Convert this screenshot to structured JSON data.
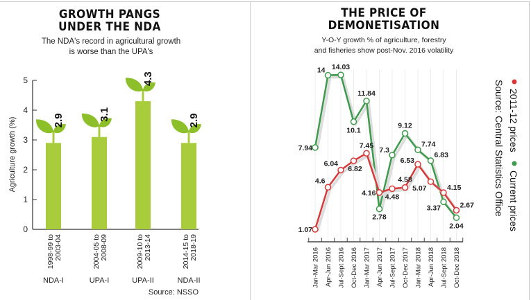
{
  "left": {
    "title_line1": "GROWTH PANGS",
    "title_line2": "UNDER THE NDA",
    "subtitle_line1": "The NDA's record in agricultural growth",
    "subtitle_line2": "is worse than the UPA's",
    "source": "Source: NSSO"
  },
  "right": {
    "title_line1": "THE PRICE OF",
    "title_line2": "DEMONETISATION",
    "subtitle_line1": "Y-O-Y growth % of agriculture, forestry",
    "subtitle_line2": "and fisheries show post-Nov. 2016 volatility",
    "source": "Source: Central Statistics Office"
  },
  "chart_data": [
    {
      "type": "bar",
      "title": "GROWTH PANGS UNDER THE NDA",
      "ylabel": "Agriculture growth (%)",
      "xlabel": "",
      "ylim": [
        0,
        5
      ],
      "yticks": [
        "0",
        "1",
        "2",
        "3",
        "4",
        "5"
      ],
      "categories": [
        {
          "period_line1": "1998-99 to",
          "period_line2": "2003-04",
          "group": "NDA-I"
        },
        {
          "period_line1": "2004-05 to",
          "period_line2": "2008-09",
          "group": "UPA-I"
        },
        {
          "period_line1": "2009-10 to",
          "period_line2": "2013-14",
          "group": "UPA-II"
        },
        {
          "period_line1": "2014-15 to",
          "period_line2": "2018-19",
          "group": "NDA-II"
        }
      ],
      "values": [
        2.9,
        3.1,
        4.3,
        2.9
      ],
      "value_labels": [
        "2.9",
        "3.1",
        "4.3",
        "2.9"
      ],
      "bar_color": "#a8cc3c",
      "leaf_color": "#8cbf2a"
    },
    {
      "type": "line",
      "title": "THE PRICE OF DEMONETISATION",
      "x": [
        "Jan-Mar 2016",
        "Apr-Jun 2016",
        "Jul-Sept 2016",
        "Oct-Dec 2016",
        "Jan-Mar 2017",
        "Apr-Jun 2017",
        "Jul-Sept 2017",
        "Oct-Dec 2017",
        "Jan-Mar 2018",
        "Apr-Jun 2018",
        "Jul-Sept 2018",
        "Oct-Dec 2018"
      ],
      "series": [
        {
          "name": "2011-12 prices",
          "color": "#d63a3a",
          "values": [
            1.07,
            4.6,
            6.04,
            6.82,
            7.45,
            4.16,
            4.48,
            4.58,
            6.53,
            5.07,
            4.15,
            2.67
          ],
          "labels": [
            "1.07",
            "4.6",
            "6.04",
            "6.82",
            "7.45",
            "4.16",
            "4.48",
            "4.58",
            "6.53",
            "5.07",
            "4.15",
            "2.67"
          ]
        },
        {
          "name": "Current prices",
          "color": "#3e9a4c",
          "values": [
            7.94,
            14,
            14.03,
            10.1,
            11.84,
            2.78,
            7.3,
            9.12,
            7.74,
            6.83,
            3.37,
            2.04
          ],
          "labels": [
            "7.94",
            "14",
            "14.03",
            "10.1",
            "11.84",
            "2.78",
            "7.3",
            "9.12",
            "7.74",
            "6.83",
            "3.37",
            "2.04"
          ]
        }
      ],
      "legend_placement": "right (rotated)",
      "grid": "vertical lines"
    }
  ]
}
